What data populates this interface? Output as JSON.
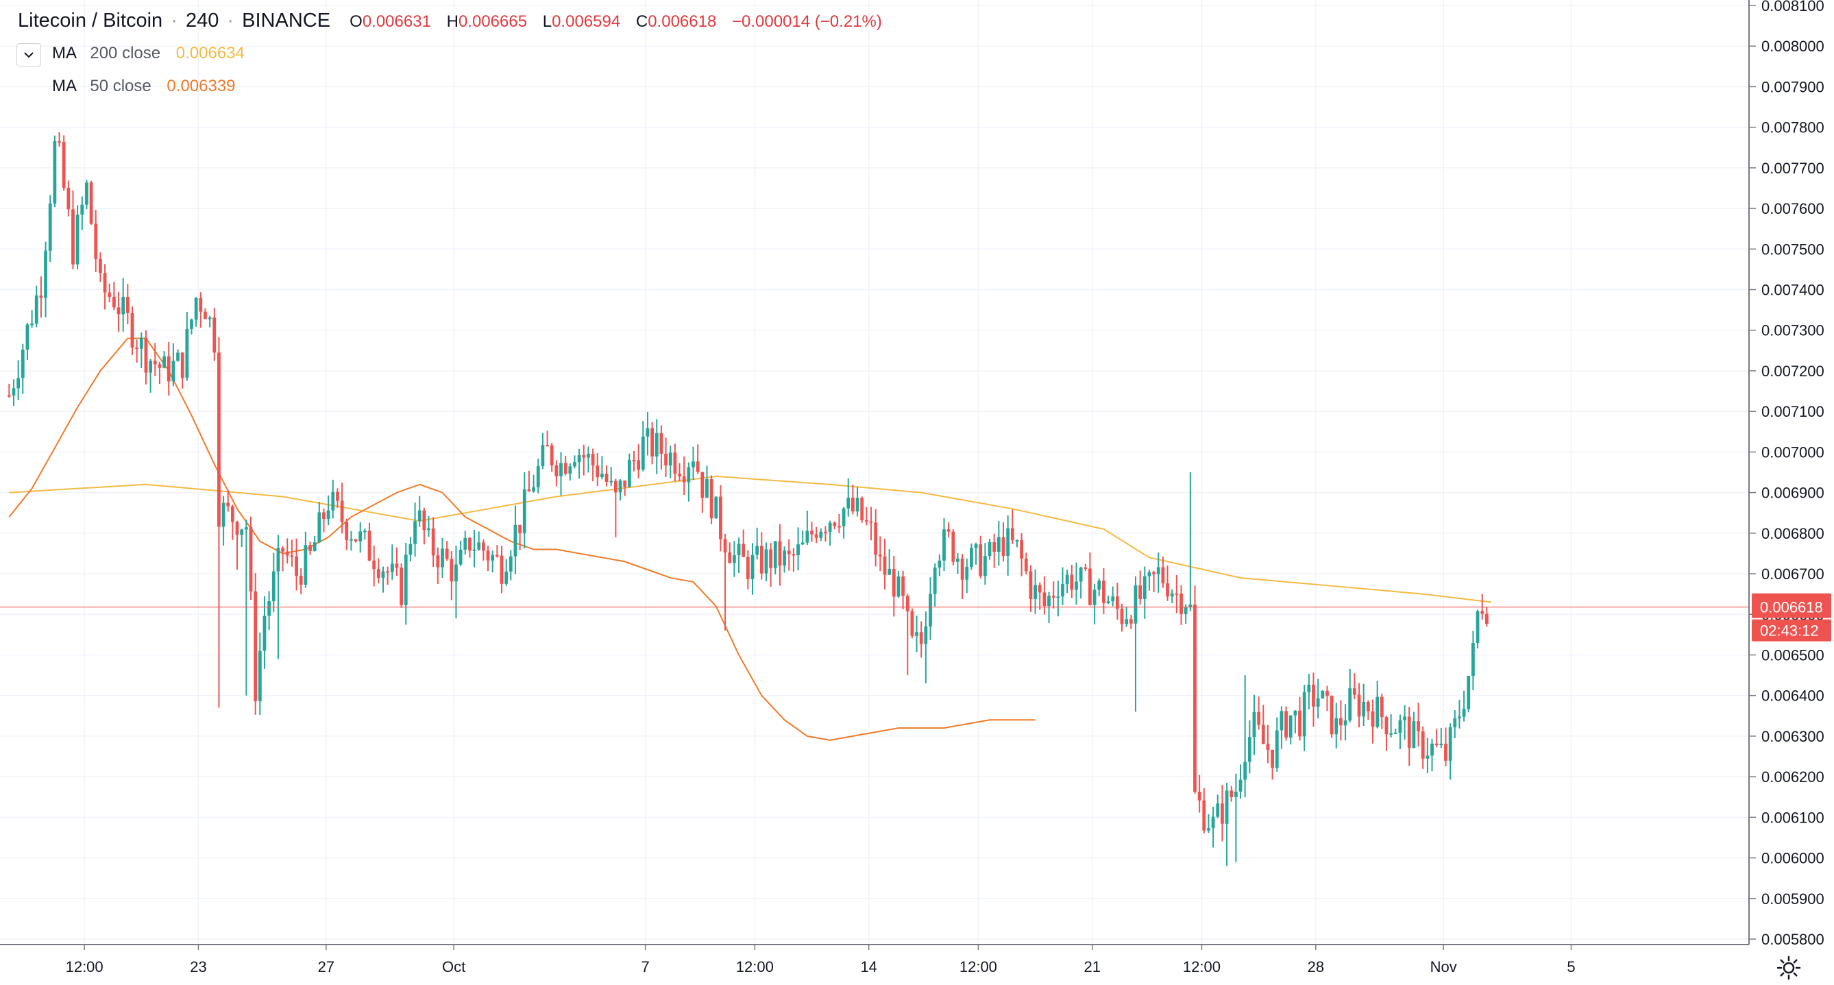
{
  "header": {
    "symbol": "Litecoin / Bitcoin",
    "interval": "240",
    "exchange": "BINANCE",
    "open_label": "O",
    "open": "0.006631",
    "high_label": "H",
    "high": "0.006665",
    "low_label": "L",
    "low": "0.006594",
    "close_label": "C",
    "close": "0.006618",
    "change": "−0.000014 (−0.21%)"
  },
  "indicators": [
    {
      "name": "MA",
      "params": "200 close",
      "value": "0.006634",
      "color": "#f5b942"
    },
    {
      "name": "MA",
      "params": "50 close",
      "value": "0.006339",
      "color": "#f07a28"
    }
  ],
  "price_label": {
    "value": "0.006618",
    "countdown": "02:43:12"
  },
  "icons": {
    "collapse": "chevron-down-icon",
    "settings": "gear-icon"
  },
  "colors": {
    "up": "#26a69a",
    "down": "#ef5350",
    "ma200": "#f5b942",
    "ma50": "#f07a28",
    "price_line": "#ef5350"
  },
  "chart_data": {
    "type": "candlestick",
    "ylim": [
      0.00578,
      0.00811
    ],
    "y_ticks": [
      "0.005800",
      "0.005900",
      "0.006000",
      "0.006100",
      "0.006200",
      "0.006300",
      "0.006400",
      "0.006500",
      "0.006600",
      "0.006700",
      "0.006800",
      "0.006900",
      "0.007000",
      "0.007100",
      "0.007200",
      "0.007300",
      "0.007400",
      "0.007500",
      "0.007600",
      "0.007700",
      "0.007800",
      "0.007900",
      "0.008000",
      "0.008100"
    ],
    "x_ticks": [
      {
        "label": "12:00",
        "bar": 17
      },
      {
        "label": "23",
        "bar": 42
      },
      {
        "label": "27",
        "bar": 70
      },
      {
        "label": "Oct",
        "bar": 98
      },
      {
        "label": "7",
        "bar": 140
      },
      {
        "label": "12:00",
        "bar": 164
      },
      {
        "label": "14",
        "bar": 189
      },
      {
        "label": "12:00",
        "bar": 213
      },
      {
        "label": "21",
        "bar": 238
      },
      {
        "label": "12:00",
        "bar": 262
      },
      {
        "label": "28",
        "bar": 287
      },
      {
        "label": "Nov",
        "bar": 315
      },
      {
        "label": "5",
        "bar": 343
      }
    ],
    "bar_count_visible": 382,
    "key_points": [
      [
        0,
        0.00714
      ],
      [
        4,
        0.0073
      ],
      [
        7,
        0.00742
      ],
      [
        10,
        0.00775
      ],
      [
        11,
        0.00772
      ],
      [
        14,
        0.0075
      ],
      [
        17,
        0.00765
      ],
      [
        20,
        0.0074
      ],
      [
        23,
        0.00738
      ],
      [
        26,
        0.00732
      ],
      [
        30,
        0.00724
      ],
      [
        34,
        0.0072
      ],
      [
        38,
        0.00722
      ],
      [
        41,
        0.00738
      ],
      [
        43,
        0.00736
      ],
      [
        45,
        0.00728
      ],
      [
        46,
        0.00686
      ],
      [
        49,
        0.00684
      ],
      [
        52,
        0.00682
      ],
      [
        54,
        0.00642
      ],
      [
        56,
        0.0066
      ],
      [
        60,
        0.00676
      ],
      [
        63,
        0.0067
      ],
      [
        66,
        0.00674
      ],
      [
        70,
        0.00688
      ],
      [
        74,
        0.00682
      ],
      [
        78,
        0.00677
      ],
      [
        82,
        0.00672
      ],
      [
        86,
        0.00666
      ],
      [
        89,
        0.00686
      ],
      [
        92,
        0.00677
      ],
      [
        95,
        0.00674
      ],
      [
        98,
        0.0067
      ],
      [
        101,
        0.00678
      ],
      [
        104,
        0.00676
      ],
      [
        108,
        0.00672
      ],
      [
        110,
        0.00678
      ],
      [
        112,
        0.00683
      ],
      [
        115,
        0.00693
      ],
      [
        118,
        0.007
      ],
      [
        121,
        0.00697
      ],
      [
        124,
        0.00701
      ],
      [
        127,
        0.00698
      ],
      [
        130,
        0.00695
      ],
      [
        133,
        0.00688
      ],
      [
        136,
        0.00696
      ],
      [
        139,
        0.00702
      ],
      [
        142,
        0.00701
      ],
      [
        145,
        0.00699
      ],
      [
        148,
        0.00697
      ],
      [
        150,
        0.007
      ],
      [
        152,
        0.00692
      ],
      [
        154,
        0.00688
      ],
      [
        156,
        0.00681
      ],
      [
        159,
        0.00674
      ],
      [
        162,
        0.00672
      ],
      [
        165,
        0.00673
      ],
      [
        168,
        0.00674
      ],
      [
        171,
        0.00673
      ],
      [
        174,
        0.00676
      ],
      [
        177,
        0.00682
      ],
      [
        180,
        0.00684
      ],
      [
        183,
        0.00686
      ],
      [
        186,
        0.00685
      ],
      [
        189,
        0.0068
      ],
      [
        191,
        0.00672
      ],
      [
        194,
        0.00668
      ],
      [
        196,
        0.00662
      ],
      [
        198,
        0.00652
      ],
      [
        200,
        0.00653
      ],
      [
        203,
        0.00676
      ],
      [
        206,
        0.00678
      ],
      [
        209,
        0.00673
      ],
      [
        212,
        0.00673
      ],
      [
        215,
        0.00674
      ],
      [
        218,
        0.00678
      ],
      [
        221,
        0.00676
      ],
      [
        224,
        0.00667
      ],
      [
        227,
        0.00662
      ],
      [
        230,
        0.00668
      ],
      [
        233,
        0.00669
      ],
      [
        236,
        0.00667
      ],
      [
        239,
        0.00666
      ],
      [
        242,
        0.00662
      ],
      [
        244,
        0.0066
      ],
      [
        246,
        0.00662
      ],
      [
        249,
        0.00665
      ],
      [
        252,
        0.0067
      ],
      [
        254,
        0.00668
      ],
      [
        256,
        0.00665
      ],
      [
        258,
        0.00664
      ],
      [
        259,
        0.00661
      ],
      [
        260,
        0.00615
      ],
      [
        262,
        0.00611
      ],
      [
        264,
        0.00608
      ],
      [
        266,
        0.00612
      ],
      [
        269,
        0.00617
      ],
      [
        271,
        0.00628
      ],
      [
        273,
        0.00632
      ],
      [
        275,
        0.00628
      ],
      [
        277,
        0.00626
      ],
      [
        279,
        0.00632
      ],
      [
        281,
        0.00635
      ],
      [
        283,
        0.00634
      ],
      [
        285,
        0.00639
      ],
      [
        287,
        0.0064
      ],
      [
        289,
        0.00636
      ],
      [
        291,
        0.00632
      ],
      [
        294,
        0.00638
      ],
      [
        297,
        0.00638
      ],
      [
        300,
        0.00636
      ],
      [
        303,
        0.00633
      ],
      [
        306,
        0.00632
      ],
      [
        309,
        0.00628
      ],
      [
        312,
        0.00627
      ],
      [
        315,
        0.00625
      ],
      [
        317,
        0.00632
      ],
      [
        319,
        0.0064
      ],
      [
        321,
        0.0065
      ],
      [
        322,
        0.0066
      ],
      [
        323,
        0.00663
      ],
      [
        324,
        0.00662
      ]
    ],
    "spikes": [
      [
        46,
        0.00637
      ],
      [
        50,
        0.00671
      ],
      [
        52,
        0.0064
      ],
      [
        59,
        0.00649
      ],
      [
        98,
        0.00659
      ],
      [
        133,
        0.00679
      ],
      [
        157,
        0.00656
      ],
      [
        197,
        0.00645
      ],
      [
        201,
        0.00643
      ],
      [
        247,
        0.00636
      ],
      [
        259,
        0.00695
      ],
      [
        267,
        0.00598
      ],
      [
        269,
        0.00599
      ],
      [
        271,
        0.00645
      ]
    ],
    "ma50": [
      [
        0,
        0.00684
      ],
      [
        5,
        0.00691
      ],
      [
        10,
        0.00701
      ],
      [
        15,
        0.00711
      ],
      [
        20,
        0.0072
      ],
      [
        26,
        0.00728
      ],
      [
        30,
        0.00728
      ],
      [
        35,
        0.0072
      ],
      [
        40,
        0.00709
      ],
      [
        45,
        0.00697
      ],
      [
        50,
        0.00686
      ],
      [
        55,
        0.00678
      ],
      [
        60,
        0.00675
      ],
      [
        65,
        0.00676
      ],
      [
        70,
        0.00679
      ],
      [
        75,
        0.00684
      ],
      [
        80,
        0.00687
      ],
      [
        85,
        0.0069
      ],
      [
        90,
        0.00692
      ],
      [
        95,
        0.0069
      ],
      [
        100,
        0.00684
      ],
      [
        105,
        0.00681
      ],
      [
        110,
        0.00678
      ],
      [
        115,
        0.00676
      ],
      [
        120,
        0.00676
      ],
      [
        125,
        0.00675
      ],
      [
        130,
        0.00674
      ],
      [
        135,
        0.00673
      ],
      [
        140,
        0.00671
      ],
      [
        145,
        0.00669
      ],
      [
        150,
        0.00668
      ],
      [
        155,
        0.00662
      ],
      [
        160,
        0.0065
      ],
      [
        165,
        0.0064
      ],
      [
        170,
        0.00634
      ],
      [
        175,
        0.0063
      ],
      [
        180,
        0.00629
      ],
      [
        185,
        0.0063
      ],
      [
        190,
        0.00631
      ],
      [
        195,
        0.00632
      ],
      [
        200,
        0.00632
      ],
      [
        205,
        0.00632
      ],
      [
        210,
        0.00633
      ],
      [
        215,
        0.00634
      ],
      [
        220,
        0.00634
      ],
      [
        225,
        0.00634
      ]
    ],
    "ma200": [
      [
        0,
        0.0069
      ],
      [
        30,
        0.00692
      ],
      [
        60,
        0.00689
      ],
      [
        90,
        0.00683
      ],
      [
        120,
        0.00689
      ],
      [
        155,
        0.00694
      ],
      [
        180,
        0.00692
      ],
      [
        200,
        0.0069
      ],
      [
        220,
        0.00686
      ],
      [
        240,
        0.00681
      ],
      [
        250,
        0.00674
      ],
      [
        270,
        0.00669
      ],
      [
        290,
        0.00667
      ],
      [
        310,
        0.00665
      ],
      [
        325,
        0.00663
      ]
    ],
    "price_line": 0.006618
  }
}
